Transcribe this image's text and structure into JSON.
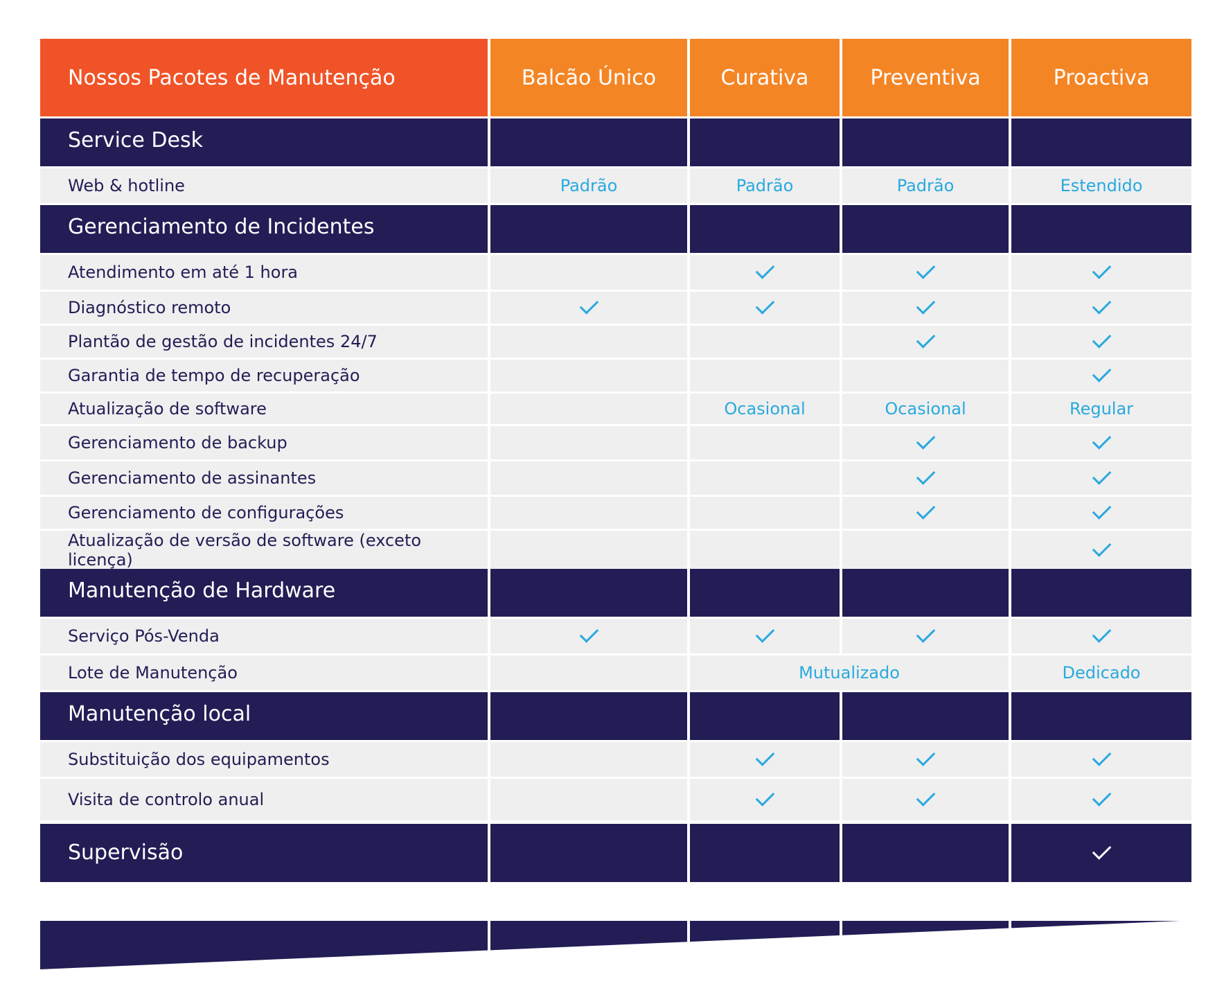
{
  "header": {
    "title": "Nossos Pacotes de Manutenção",
    "columns": [
      "Balcão Único",
      "Curativa",
      "Preventiva",
      "Proactiva"
    ]
  },
  "sections": [
    {
      "title": "Service Desk",
      "rows": [
        {
          "label": "Web & hotline",
          "values": [
            "Padrão",
            "Padrão",
            "Padrão",
            "Estendido"
          ]
        }
      ]
    },
    {
      "title": "Gerenciamento de Incidentes",
      "rows": [
        {
          "label": "Atendimento em até 1 hora",
          "values": [
            null,
            "check",
            "check",
            "check"
          ]
        },
        {
          "label": "Diagnóstico remoto",
          "values": [
            "check",
            "check",
            "check",
            "check"
          ]
        },
        {
          "label": "Plantão de gestão de incidentes 24/7",
          "values": [
            null,
            null,
            "check",
            "check"
          ]
        },
        {
          "label": "Garantia de tempo de recuperação",
          "values": [
            null,
            null,
            null,
            "check"
          ]
        },
        {
          "label": "Atualização de software",
          "values": [
            null,
            "Ocasional",
            "Ocasional",
            "Regular"
          ]
        },
        {
          "label": "Gerenciamento de backup",
          "values": [
            null,
            null,
            "check",
            "check"
          ]
        },
        {
          "label": "Gerenciamento de assinantes",
          "values": [
            null,
            null,
            "check",
            "check"
          ]
        },
        {
          "label": "Gerenciamento de configurações",
          "values": [
            null,
            null,
            "check",
            "check"
          ]
        },
        {
          "label": "Atualização de versão de software (exceto licença)",
          "values": [
            null,
            null,
            null,
            "check"
          ]
        }
      ]
    },
    {
      "title": "Manutenção de Hardware",
      "rows": [
        {
          "label": "Serviço Pós-Venda",
          "values": [
            "check",
            "check",
            "check",
            "check"
          ]
        },
        {
          "label": "Lote de Manutenção",
          "values": [
            null,
            "Mutualizado",
            "Dedicado"
          ]
        }
      ]
    },
    {
      "title": "Manutenção local",
      "rows": [
        {
          "label": "Substituição dos equipamentos",
          "values": [
            null,
            "check",
            "check",
            "check"
          ]
        },
        {
          "label": "Visita de controlo anual",
          "values": [
            null,
            "check",
            "check",
            "check"
          ]
        }
      ]
    },
    {
      "title": "Supervisão",
      "values": [
        null,
        null,
        null,
        "check"
      ]
    }
  ],
  "icons": {
    "check": "check-icon"
  },
  "colors": {
    "header_title_bg": "#f05327",
    "header_bg": "#f48525",
    "section_bg": "#221d55",
    "row_bg": "#efefef",
    "accent": "#29a9df"
  }
}
